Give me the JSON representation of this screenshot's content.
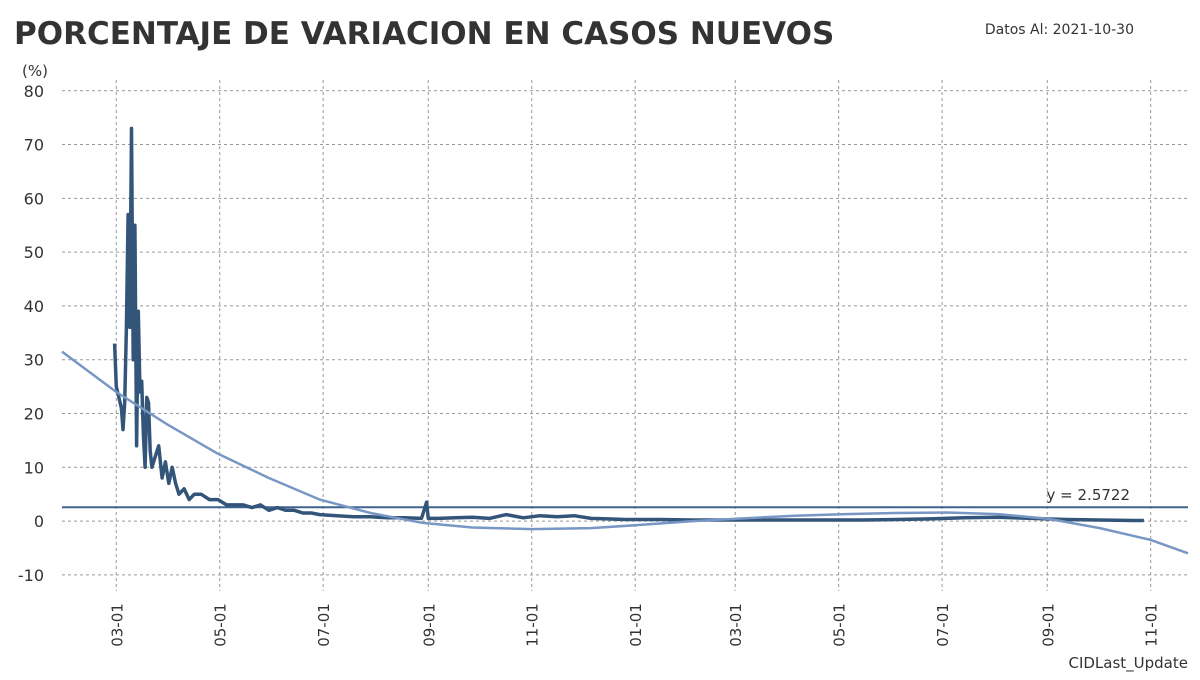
{
  "chart_data": {
    "type": "line",
    "title": "PORCENTAJE DE VARIACION EN CASOS NUEVOS",
    "subtitle": "Datos Al: 2021-10-30",
    "y_label": "(%)",
    "footer": "CIDLast_Update",
    "xlim": [
      -32,
      632
    ],
    "xticks": [
      {
        "value": 0,
        "label": "03-01"
      },
      {
        "value": 61,
        "label": "05-01"
      },
      {
        "value": 122,
        "label": "07-01"
      },
      {
        "value": 184,
        "label": "09-01"
      },
      {
        "value": 245,
        "label": "11-01"
      },
      {
        "value": 306,
        "label": "01-01"
      },
      {
        "value": 365,
        "label": "03-01"
      },
      {
        "value": 426,
        "label": "05-01"
      },
      {
        "value": 487,
        "label": "07-01"
      },
      {
        "value": 549,
        "label": "09-01"
      },
      {
        "value": 610,
        "label": "11-01"
      }
    ],
    "ylim": [
      -13,
      82
    ],
    "yticks": [
      -10,
      0,
      10,
      20,
      30,
      40,
      50,
      60,
      70,
      80
    ],
    "grid": true,
    "hline": {
      "value": 2.5722,
      "label": "y = 2.5722",
      "color": "#3e6390"
    },
    "series": [
      {
        "color": "#34557a",
        "width": 3.5,
        "x": [
          -1,
          0,
          3,
          4,
          5,
          6,
          7,
          8,
          9,
          10,
          11,
          12,
          13,
          14,
          15,
          16,
          17,
          18,
          19,
          20,
          21,
          23,
          25,
          27,
          29,
          31,
          33,
          35,
          37,
          40,
          43,
          46,
          50,
          55,
          60,
          65,
          70,
          75,
          80,
          85,
          90,
          95,
          100,
          105,
          110,
          115,
          120,
          130,
          140,
          150,
          160,
          170,
          180,
          183,
          184,
          190,
          200,
          210,
          220,
          230,
          240,
          250,
          260,
          270,
          280,
          290,
          300,
          320,
          340,
          360,
          380,
          400,
          420,
          440,
          460,
          480,
          500,
          520,
          540,
          560,
          580,
          600,
          606
        ],
        "values": [
          33,
          25,
          21,
          17,
          22,
          36,
          57,
          36,
          73,
          30,
          55,
          14,
          39,
          24,
          26,
          16,
          10,
          23,
          22,
          13,
          10,
          12,
          14,
          8,
          11,
          7,
          10,
          7,
          5,
          6,
          4,
          5,
          5,
          4,
          4,
          3,
          3,
          3,
          2.5,
          3,
          2,
          2.5,
          2,
          2,
          1.5,
          1.5,
          1.2,
          1,
          0.8,
          0.8,
          0.6,
          0.6,
          0.5,
          3.5,
          0.5,
          0.5,
          0.6,
          0.7,
          0.5,
          1.2,
          0.6,
          1,
          0.8,
          1,
          0.5,
          0.4,
          0.3,
          0.3,
          0.2,
          0.2,
          0.2,
          0.2,
          0.2,
          0.2,
          0.3,
          0.4,
          0.6,
          0.7,
          0.5,
          0.3,
          0.2,
          0.1,
          0.1
        ]
      },
      {
        "color": "#7897c4",
        "width": 2.5,
        "x": [
          -32,
          0,
          30,
          60,
          90,
          120,
          150,
          180,
          210,
          245,
          280,
          310,
          340,
          370,
          400,
          430,
          460,
          490,
          520,
          550,
          580,
          610,
          632
        ],
        "values": [
          31.5,
          24,
          18,
          12.5,
          8,
          4,
          1.5,
          -0.3,
          -1.2,
          -1.5,
          -1.3,
          -0.7,
          0,
          0.5,
          1,
          1.3,
          1.5,
          1.6,
          1.3,
          0.4,
          -1.3,
          -3.5,
          -6
        ]
      }
    ]
  }
}
